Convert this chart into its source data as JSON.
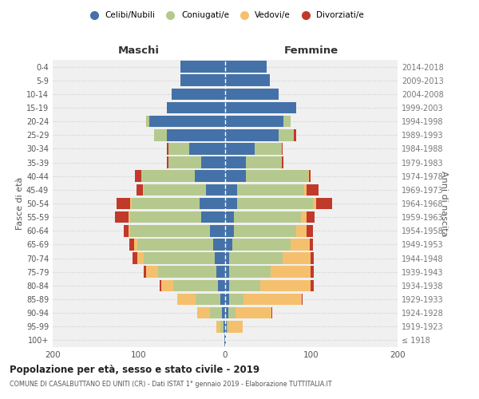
{
  "age_groups": [
    "100+",
    "95-99",
    "90-94",
    "85-89",
    "80-84",
    "75-79",
    "70-74",
    "65-69",
    "60-64",
    "55-59",
    "50-54",
    "45-49",
    "40-44",
    "35-39",
    "30-34",
    "25-29",
    "20-24",
    "15-19",
    "10-14",
    "5-9",
    "0-4"
  ],
  "birth_years": [
    "≤ 1918",
    "1919-1923",
    "1924-1928",
    "1929-1933",
    "1934-1938",
    "1939-1943",
    "1944-1948",
    "1949-1953",
    "1954-1958",
    "1959-1963",
    "1964-1968",
    "1969-1973",
    "1974-1978",
    "1979-1983",
    "1984-1988",
    "1989-1993",
    "1994-1998",
    "1999-2003",
    "2004-2008",
    "2009-2013",
    "2014-2018"
  ],
  "male": {
    "celibi": [
      1,
      2,
      4,
      6,
      8,
      10,
      12,
      14,
      18,
      28,
      30,
      22,
      35,
      28,
      42,
      68,
      88,
      68,
      62,
      52,
      52
    ],
    "coniugati": [
      0,
      4,
      14,
      28,
      52,
      68,
      82,
      88,
      92,
      82,
      78,
      72,
      62,
      38,
      24,
      14,
      4,
      0,
      0,
      0,
      0
    ],
    "vedovi": [
      0,
      4,
      14,
      22,
      14,
      14,
      8,
      4,
      2,
      2,
      2,
      1,
      0,
      0,
      0,
      0,
      0,
      0,
      0,
      0,
      0
    ],
    "divorziati": [
      0,
      0,
      0,
      0,
      2,
      2,
      5,
      5,
      6,
      16,
      16,
      8,
      8,
      2,
      2,
      0,
      0,
      0,
      0,
      0,
      0
    ]
  },
  "female": {
    "nubili": [
      1,
      2,
      4,
      5,
      5,
      5,
      5,
      8,
      10,
      10,
      14,
      14,
      24,
      24,
      34,
      62,
      68,
      82,
      62,
      52,
      48
    ],
    "coniugate": [
      0,
      2,
      8,
      16,
      36,
      48,
      62,
      68,
      72,
      78,
      88,
      78,
      72,
      42,
      32,
      18,
      8,
      0,
      0,
      0,
      0
    ],
    "vedove": [
      0,
      16,
      42,
      68,
      58,
      46,
      32,
      22,
      12,
      6,
      4,
      2,
      1,
      0,
      0,
      0,
      0,
      0,
      0,
      0,
      0
    ],
    "divorziate": [
      0,
      0,
      1,
      1,
      4,
      4,
      4,
      4,
      8,
      10,
      18,
      14,
      2,
      2,
      1,
      2,
      0,
      0,
      0,
      0,
      0
    ]
  },
  "colors": {
    "celibi": "#4472a8",
    "coniugati": "#b5c98e",
    "vedovi": "#f5c06e",
    "divorziati": "#c0392b"
  },
  "legend_labels": [
    "Celibi/Nubili",
    "Coniugati/e",
    "Vedovi/e",
    "Divorziati/e"
  ],
  "title": "Popolazione per età, sesso e stato civile - 2019",
  "subtitle": "COMUNE DI CASALBUTTANO ED UNITI (CR) - Dati ISTAT 1° gennaio 2019 - Elaborazione TUTTITALIA.IT",
  "label_maschi": "Maschi",
  "label_femmine": "Femmine",
  "ylabel_left": "Fasce di età",
  "ylabel_right": "Anni di nascita",
  "xlim": 200,
  "background_color": "#ffffff",
  "plot_bg_color": "#f0f0f0"
}
